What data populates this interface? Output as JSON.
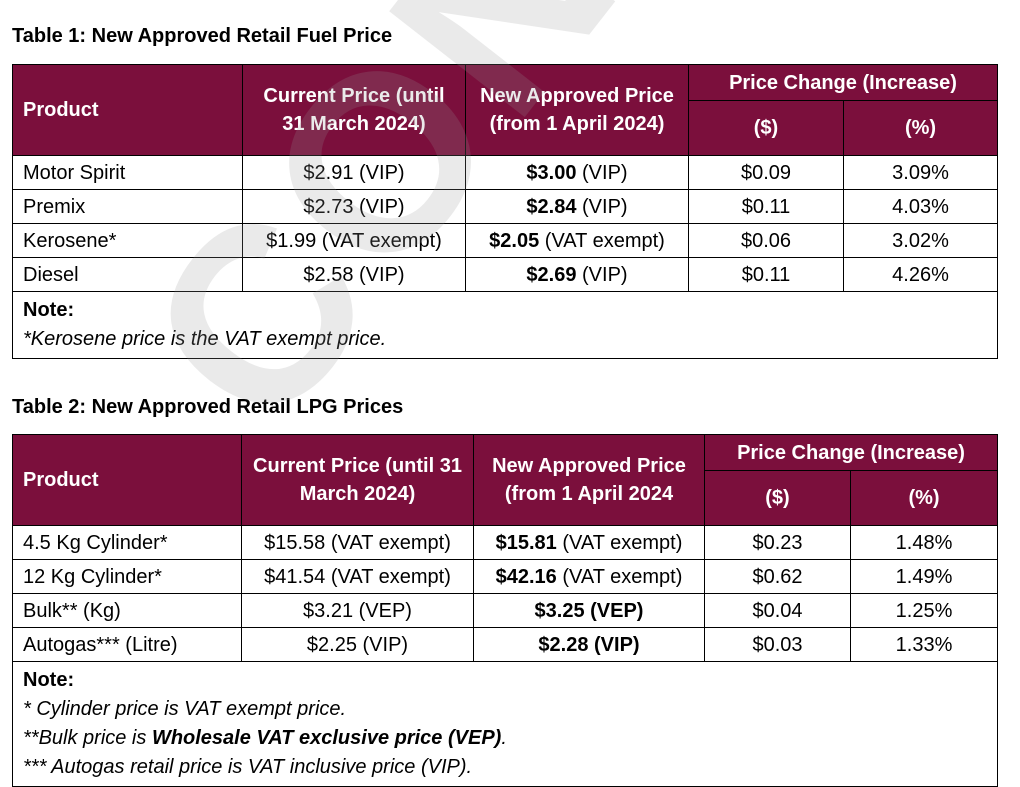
{
  "watermark": "CONFIDENTIAL",
  "table1": {
    "title": "Table 1: New Approved Retail Fuel Price",
    "headers": {
      "product": "Product",
      "current": "Current Price (until 31 March 2024)",
      "new": "New Approved Price (from 1 April 2024)",
      "change": "Price Change (Increase)",
      "change_dollar": "($)",
      "change_percent": "(%)"
    },
    "rows": [
      {
        "product": "Motor Spirit",
        "current": "$2.91 (VIP)",
        "new_value": "$3.00",
        "new_suffix": " (VIP)",
        "change_dollar": "$0.09",
        "change_percent": "3.09%"
      },
      {
        "product": "Premix",
        "current": "$2.73 (VIP)",
        "new_value": "$2.84",
        "new_suffix": " (VIP)",
        "change_dollar": "$0.11",
        "change_percent": "4.03%"
      },
      {
        "product": "Kerosene*",
        "current": "$1.99 (VAT exempt)",
        "new_value": "$2.05",
        "new_suffix": " (VAT exempt)",
        "change_dollar": "$0.06",
        "change_percent": "3.02%"
      },
      {
        "product": "Diesel",
        "current": "$2.58 (VIP)",
        "new_value": "$2.69",
        "new_suffix": " (VIP)",
        "change_dollar": "$0.11",
        "change_percent": "4.26%"
      }
    ],
    "note_label": "Note:",
    "note_lines": [
      "*Kerosene price is the VAT exempt price."
    ]
  },
  "table2": {
    "title": "Table 2: New Approved Retail LPG Prices",
    "headers": {
      "product": "Product",
      "current": "Current Price (until 31 March 2024)",
      "new": "New Approved Price (from 1 April 2024",
      "change": "Price Change (Increase)",
      "change_dollar": "($)",
      "change_percent": "(%)"
    },
    "rows": [
      {
        "product": "4.5 Kg Cylinder*",
        "current": "$15.58 (VAT exempt)",
        "new_value": "$15.81",
        "new_suffix": " (VAT exempt)",
        "change_dollar": "$0.23",
        "change_percent": "1.48%"
      },
      {
        "product": "12 Kg Cylinder*",
        "current": "$41.54 (VAT exempt)",
        "new_value": "$42.16",
        "new_suffix": " (VAT exempt)",
        "change_dollar": "$0.62",
        "change_percent": "1.49%"
      },
      {
        "product": "Bulk** (Kg)",
        "current": "$3.21 (VEP)",
        "new_value": "$3.25 (VEP)",
        "new_suffix": "",
        "change_dollar": "$0.04",
        "change_percent": "1.25%"
      },
      {
        "product": "Autogas*** (Litre)",
        "current": "$2.25 (VIP)",
        "new_value": "$2.28 (VIP)",
        "new_suffix": "",
        "change_dollar": "$0.03",
        "change_percent": "1.33%"
      }
    ],
    "note_label": "Note:",
    "note_line1": "* Cylinder price is VAT exempt price.",
    "note_line2_prefix": "**Bulk price is ",
    "note_line2_bold": "Wholesale VAT exclusive price (VEP)",
    "note_line2_suffix": ".",
    "note_line3": "*** Autogas retail price is VAT inclusive price (VIP)."
  }
}
